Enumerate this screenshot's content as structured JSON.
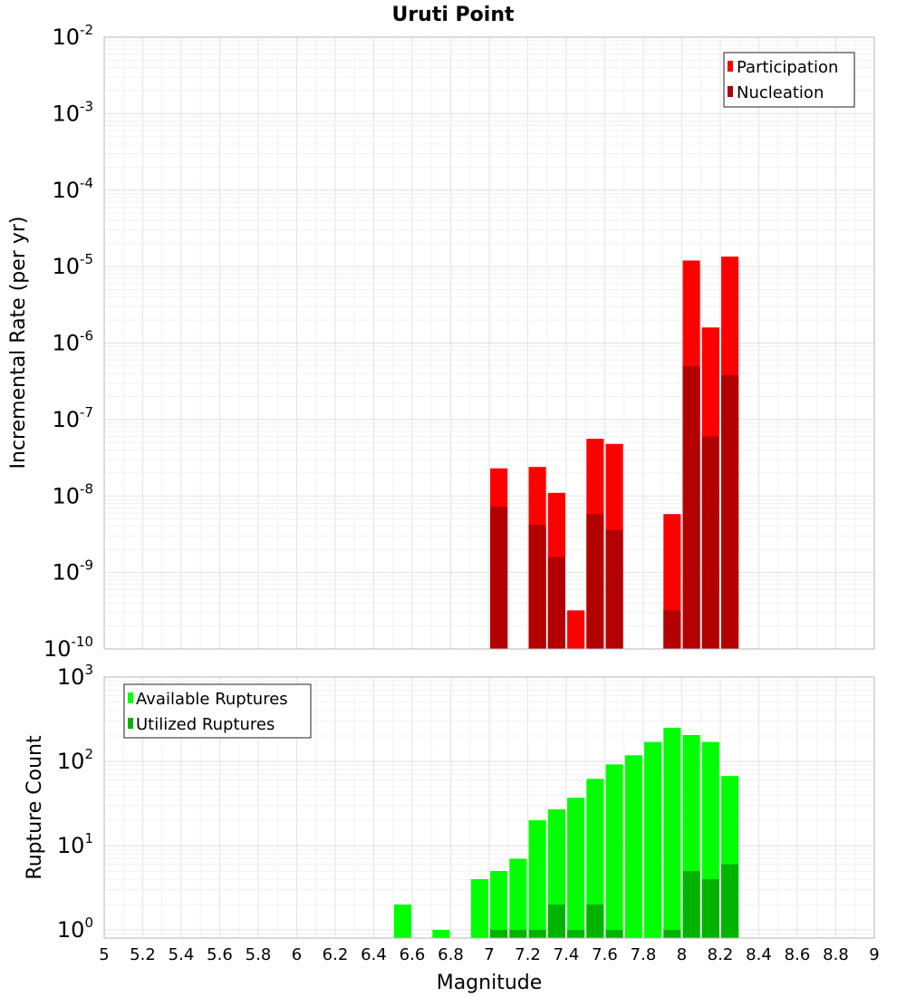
{
  "chart_data": [
    {
      "type": "bar",
      "title": "Uruti Point",
      "xlabel": "",
      "ylabel": "Incremental Rate (per yr)",
      "yscale": "log",
      "xlim": [
        5,
        9
      ],
      "ylim": [
        1e-10,
        0.01
      ],
      "ytick_base": "10",
      "ytick_exponents": [
        "-10",
        "-9",
        "-8",
        "-7",
        "-6",
        "-5",
        "-4",
        "-3",
        "-2"
      ],
      "legend_placement": "top-right",
      "grid": true,
      "series": [
        {
          "name": "Participation",
          "color": "#ff0000",
          "points": [
            {
              "x": 7.05,
              "y": 2.3e-08
            },
            {
              "x": 7.25,
              "y": 2.4e-08
            },
            {
              "x": 7.35,
              "y": 1.1e-08
            },
            {
              "x": 7.45,
              "y": 3.2e-10
            },
            {
              "x": 7.55,
              "y": 5.6e-08
            },
            {
              "x": 7.65,
              "y": 4.8e-08
            },
            {
              "x": 7.95,
              "y": 5.8e-09
            },
            {
              "x": 8.05,
              "y": 1.2e-05
            },
            {
              "x": 8.15,
              "y": 1.6e-06
            },
            {
              "x": 8.25,
              "y": 1.35e-05
            }
          ]
        },
        {
          "name": "Nucleation",
          "color": "#b30000",
          "points": [
            {
              "x": 7.05,
              "y": 7.2e-09
            },
            {
              "x": 7.25,
              "y": 4.2e-09
            },
            {
              "x": 7.35,
              "y": 1.6e-09
            },
            {
              "x": 7.45,
              "y": 1e-10
            },
            {
              "x": 7.55,
              "y": 5.8e-09
            },
            {
              "x": 7.65,
              "y": 3.6e-09
            },
            {
              "x": 7.95,
              "y": 3.2e-10
            },
            {
              "x": 8.05,
              "y": 5e-07
            },
            {
              "x": 8.15,
              "y": 6e-08
            },
            {
              "x": 8.25,
              "y": 3.8e-07
            }
          ]
        }
      ]
    },
    {
      "type": "bar",
      "xlabel": "Magnitude",
      "ylabel": "Rupture Count",
      "yscale": "log",
      "xlim": [
        5,
        9
      ],
      "ylim": [
        0.8,
        1000
      ],
      "xticks": [
        "5",
        "5.2",
        "5.4",
        "5.6",
        "5.8",
        "6",
        "6.2",
        "6.4",
        "6.6",
        "6.8",
        "7",
        "7.2",
        "7.4",
        "7.6",
        "7.8",
        "8",
        "8.2",
        "8.4",
        "8.6",
        "8.8",
        "9"
      ],
      "ytick_base": "10",
      "ytick_exponents": [
        "0",
        "1",
        "2",
        "3"
      ],
      "legend_placement": "top-left",
      "grid": true,
      "series": [
        {
          "name": "Available Ruptures",
          "color": "#00ff00",
          "points": [
            {
              "x": 6.55,
              "y": 2
            },
            {
              "x": 6.75,
              "y": 1
            },
            {
              "x": 6.95,
              "y": 4
            },
            {
              "x": 7.05,
              "y": 5
            },
            {
              "x": 7.15,
              "y": 7
            },
            {
              "x": 7.25,
              "y": 20
            },
            {
              "x": 7.35,
              "y": 27
            },
            {
              "x": 7.45,
              "y": 37
            },
            {
              "x": 7.55,
              "y": 62
            },
            {
              "x": 7.65,
              "y": 92
            },
            {
              "x": 7.75,
              "y": 118
            },
            {
              "x": 7.85,
              "y": 170
            },
            {
              "x": 7.95,
              "y": 250
            },
            {
              "x": 8.05,
              "y": 205
            },
            {
              "x": 8.15,
              "y": 170
            },
            {
              "x": 8.25,
              "y": 67
            }
          ]
        },
        {
          "name": "Utilized Ruptures",
          "color": "#00b300",
          "points": [
            {
              "x": 7.05,
              "y": 1
            },
            {
              "x": 7.15,
              "y": 1
            },
            {
              "x": 7.25,
              "y": 1
            },
            {
              "x": 7.35,
              "y": 2
            },
            {
              "x": 7.45,
              "y": 1
            },
            {
              "x": 7.55,
              "y": 2
            },
            {
              "x": 7.65,
              "y": 1
            },
            {
              "x": 7.95,
              "y": 1
            },
            {
              "x": 8.05,
              "y": 5
            },
            {
              "x": 8.15,
              "y": 4
            },
            {
              "x": 8.25,
              "y": 6
            }
          ]
        }
      ]
    }
  ]
}
